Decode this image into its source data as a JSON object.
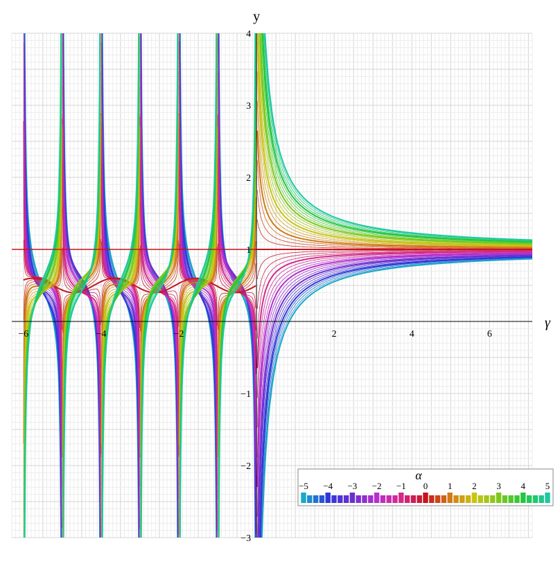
{
  "chart_data": {
    "type": "line",
    "xlabel": "γ",
    "ylabel": "y",
    "xlim": [
      -6.3,
      7.1
    ],
    "ylim": [
      -3,
      4
    ],
    "x_ticks": [
      -6,
      -4,
      -2,
      2,
      4,
      6
    ],
    "y_ticks": [
      -3,
      -2,
      -1,
      1,
      2,
      3,
      4
    ],
    "x_tick_labels": [
      "−6",
      "−4",
      "−2",
      "2",
      "4",
      "6"
    ],
    "y_tick_labels": [
      "−3",
      "−2",
      "−1",
      "1",
      "2",
      "3",
      "4"
    ],
    "grid": true,
    "legend": {
      "title": "α",
      "placement": "bottom-right",
      "type": "colorbar",
      "ticks": [
        -5,
        -4,
        -3,
        -2,
        -1,
        0,
        1,
        2,
        3,
        4,
        5
      ],
      "tick_labels": [
        "−5",
        "−4",
        "−3",
        "−2",
        "−1",
        "0",
        "1",
        "2",
        "3",
        "4",
        "5"
      ],
      "range": [
        -5,
        5
      ],
      "color_stops": [
        {
          "alpha": -5,
          "color": "#19a9c9"
        },
        {
          "alpha": -4,
          "color": "#2d38d8"
        },
        {
          "alpha": -3,
          "color": "#6b2fd0"
        },
        {
          "alpha": -2,
          "color": "#b52fcf"
        },
        {
          "alpha": -1,
          "color": "#d42a8a"
        },
        {
          "alpha": 0,
          "color": "#c4141e"
        },
        {
          "alpha": 1,
          "color": "#d27a17"
        },
        {
          "alpha": 2,
          "color": "#c9c414"
        },
        {
          "alpha": 3,
          "color": "#7ec81c"
        },
        {
          "alpha": 4,
          "color": "#22c63f"
        },
        {
          "alpha": 5,
          "color": "#1dc9a0"
        }
      ]
    },
    "series_family": {
      "parameter": "α",
      "values": [
        -5.0,
        -4.75,
        -4.5,
        -4.25,
        -4.0,
        -3.75,
        -3.5,
        -3.25,
        -3.0,
        -2.75,
        -2.5,
        -2.25,
        -2.0,
        -1.75,
        -1.5,
        -1.25,
        -1.0,
        -0.75,
        -0.5,
        -0.25,
        0.0,
        0.25,
        0.5,
        0.75,
        1.0,
        1.25,
        1.5,
        1.75,
        2.0,
        2.25,
        2.5,
        2.75,
        3.0,
        3.25,
        3.5,
        3.75,
        4.0,
        4.25,
        4.5,
        4.75,
        5.0
      ],
      "highlighted_integers": [
        -5,
        -4,
        -3,
        -2,
        -1,
        0,
        1,
        2,
        3,
        4,
        5
      ]
    }
  }
}
